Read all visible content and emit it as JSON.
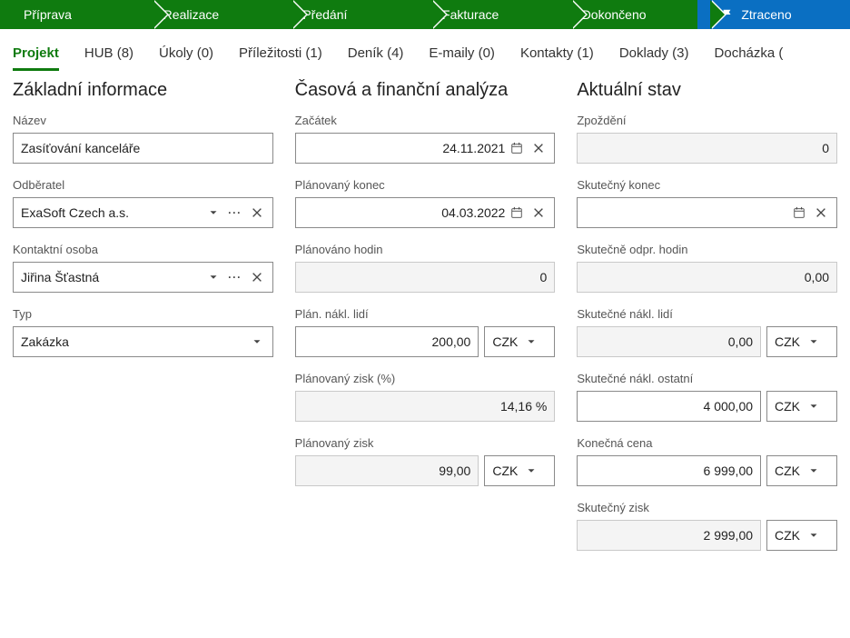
{
  "colors": {
    "green": "#0f7b0f",
    "blue": "#0a6fc2",
    "border": "#8a8a8a",
    "readonly_bg": "#f4f4f4"
  },
  "stages": {
    "items": [
      {
        "label": "Příprava",
        "active": false
      },
      {
        "label": "Realizace",
        "active": false
      },
      {
        "label": "Předání",
        "active": false
      },
      {
        "label": "Fakturace",
        "active": false
      },
      {
        "label": "Dokončeno",
        "active": false
      },
      {
        "label": "Ztraceno",
        "active": true,
        "flag": true
      }
    ]
  },
  "tabs": {
    "items": [
      {
        "label": "Projekt",
        "active": true
      },
      {
        "label": "HUB (8)"
      },
      {
        "label": "Úkoly (0)"
      },
      {
        "label": "Příležitosti (1)"
      },
      {
        "label": "Deník (4)"
      },
      {
        "label": "E-maily (0)"
      },
      {
        "label": "Kontakty (1)"
      },
      {
        "label": "Doklady (3)"
      },
      {
        "label": "Docházka ("
      }
    ]
  },
  "col1": {
    "title": "Základní informace",
    "name_label": "Název",
    "name_value": "Zasíťování kanceláře",
    "customer_label": "Odběratel",
    "customer_value": "ExaSoft Czech a.s.",
    "contact_label": "Kontaktní osoba",
    "contact_value": "Jiřina Šťastná",
    "type_label": "Typ",
    "type_value": "Zakázka"
  },
  "col2": {
    "title": "Časová a finanční analýza",
    "start_label": "Začátek",
    "start_value": "24.11.2021",
    "planned_end_label": "Plánovaný konec",
    "planned_end_value": "04.03.2022",
    "planned_hours_label": "Plánováno hodin",
    "planned_hours_value": "0",
    "planned_people_cost_label": "Plán. nákl. lidí",
    "planned_people_cost_value": "200,00",
    "planned_profit_pct_label": "Plánovaný zisk (%)",
    "planned_profit_pct_value": "14,16 %",
    "planned_profit_label": "Plánovaný zisk",
    "planned_profit_value": "99,00",
    "currency": "CZK"
  },
  "col3": {
    "title": "Aktuální stav",
    "delay_label": "Zpoždění",
    "delay_value": "0",
    "actual_end_label": "Skutečný konec",
    "actual_end_value": "",
    "actual_hours_label": "Skutečně odpr. hodin",
    "actual_hours_value": "0,00",
    "actual_people_cost_label": "Skutečné nákl. lidí",
    "actual_people_cost_value": "0,00",
    "actual_other_cost_label": "Skutečné nákl. ostatní",
    "actual_other_cost_value": "4 000,00",
    "final_price_label": "Konečná cena",
    "final_price_value": "6 999,00",
    "actual_profit_label": "Skutečný zisk",
    "actual_profit_value": "2 999,00",
    "currency": "CZK"
  }
}
